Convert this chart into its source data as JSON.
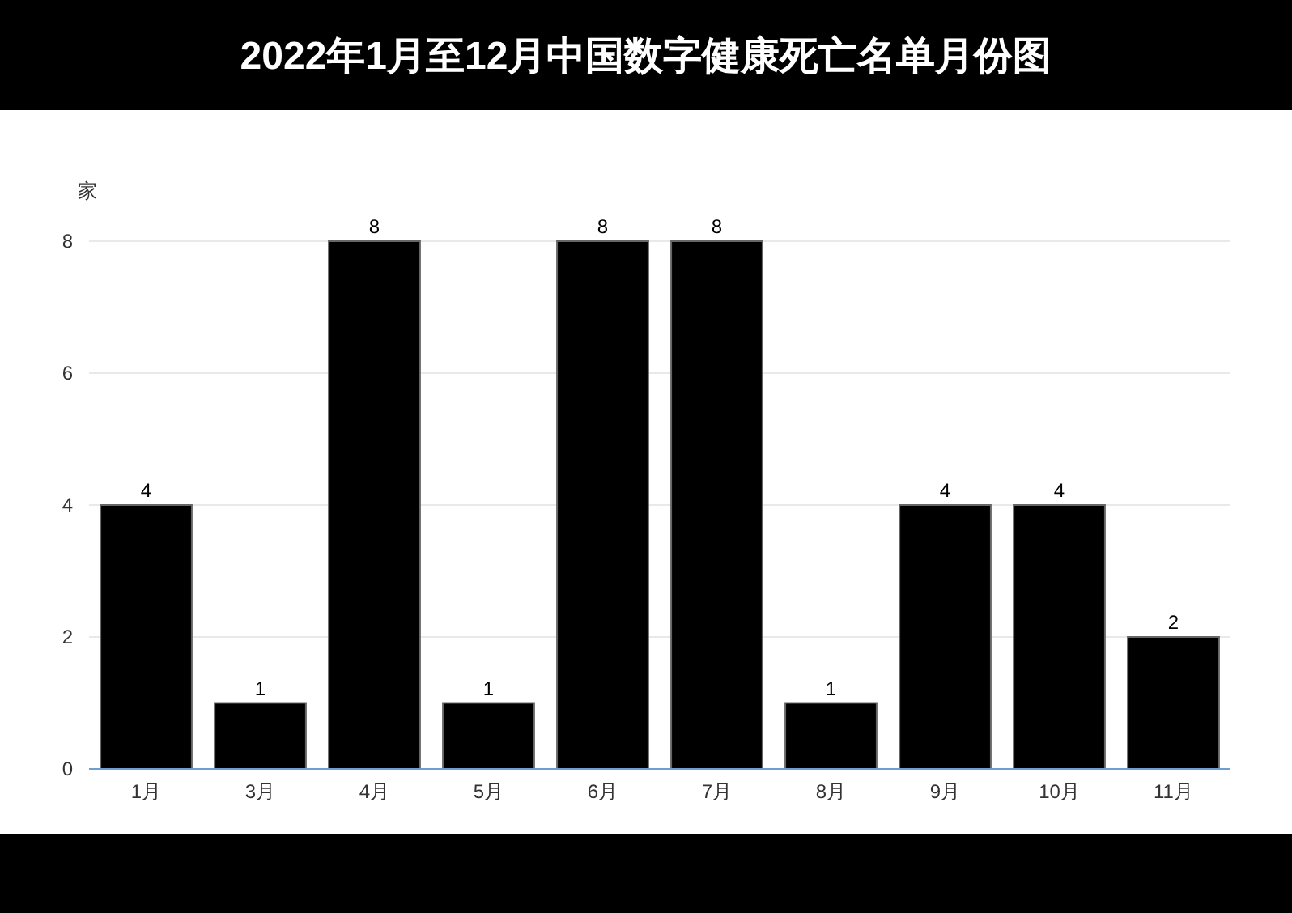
{
  "chart_data": {
    "type": "bar",
    "title": "2022年1月至12月中国数字健康死亡名单月份图",
    "ylabel": "家",
    "categories": [
      "1月",
      "3月",
      "4月",
      "5月",
      "6月",
      "7月",
      "8月",
      "9月",
      "10月",
      "11月"
    ],
    "values": [
      4,
      1,
      8,
      1,
      8,
      8,
      1,
      4,
      4,
      2
    ],
    "color": "#000000",
    "ylim": [
      0,
      8
    ],
    "yticks": [
      0,
      2,
      4,
      6,
      8
    ],
    "grid": "y",
    "data_labels": true
  }
}
